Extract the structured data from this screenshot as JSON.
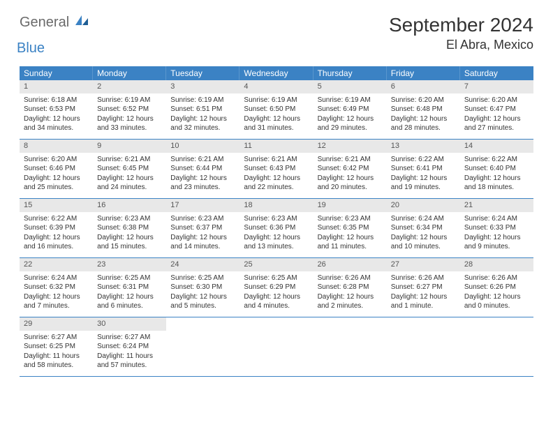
{
  "brand": {
    "part1": "General",
    "part2": "Blue"
  },
  "title": "September 2024",
  "location": "El Abra, Mexico",
  "colors": {
    "header_bg": "#3b82c4",
    "header_text": "#ffffff",
    "daynum_bg": "#e8e8e8",
    "daynum_text": "#555555",
    "body_text": "#333333",
    "row_border": "#3b82c4",
    "brand_gray": "#6a6a6a",
    "brand_blue": "#3b82c4"
  },
  "day_headers": [
    "Sunday",
    "Monday",
    "Tuesday",
    "Wednesday",
    "Thursday",
    "Friday",
    "Saturday"
  ],
  "weeks": [
    [
      {
        "n": "1",
        "sunrise": "Sunrise: 6:18 AM",
        "sunset": "Sunset: 6:53 PM",
        "daylight": "Daylight: 12 hours and 34 minutes."
      },
      {
        "n": "2",
        "sunrise": "Sunrise: 6:19 AM",
        "sunset": "Sunset: 6:52 PM",
        "daylight": "Daylight: 12 hours and 33 minutes."
      },
      {
        "n": "3",
        "sunrise": "Sunrise: 6:19 AM",
        "sunset": "Sunset: 6:51 PM",
        "daylight": "Daylight: 12 hours and 32 minutes."
      },
      {
        "n": "4",
        "sunrise": "Sunrise: 6:19 AM",
        "sunset": "Sunset: 6:50 PM",
        "daylight": "Daylight: 12 hours and 31 minutes."
      },
      {
        "n": "5",
        "sunrise": "Sunrise: 6:19 AM",
        "sunset": "Sunset: 6:49 PM",
        "daylight": "Daylight: 12 hours and 29 minutes."
      },
      {
        "n": "6",
        "sunrise": "Sunrise: 6:20 AM",
        "sunset": "Sunset: 6:48 PM",
        "daylight": "Daylight: 12 hours and 28 minutes."
      },
      {
        "n": "7",
        "sunrise": "Sunrise: 6:20 AM",
        "sunset": "Sunset: 6:47 PM",
        "daylight": "Daylight: 12 hours and 27 minutes."
      }
    ],
    [
      {
        "n": "8",
        "sunrise": "Sunrise: 6:20 AM",
        "sunset": "Sunset: 6:46 PM",
        "daylight": "Daylight: 12 hours and 25 minutes."
      },
      {
        "n": "9",
        "sunrise": "Sunrise: 6:21 AM",
        "sunset": "Sunset: 6:45 PM",
        "daylight": "Daylight: 12 hours and 24 minutes."
      },
      {
        "n": "10",
        "sunrise": "Sunrise: 6:21 AM",
        "sunset": "Sunset: 6:44 PM",
        "daylight": "Daylight: 12 hours and 23 minutes."
      },
      {
        "n": "11",
        "sunrise": "Sunrise: 6:21 AM",
        "sunset": "Sunset: 6:43 PM",
        "daylight": "Daylight: 12 hours and 22 minutes."
      },
      {
        "n": "12",
        "sunrise": "Sunrise: 6:21 AM",
        "sunset": "Sunset: 6:42 PM",
        "daylight": "Daylight: 12 hours and 20 minutes."
      },
      {
        "n": "13",
        "sunrise": "Sunrise: 6:22 AM",
        "sunset": "Sunset: 6:41 PM",
        "daylight": "Daylight: 12 hours and 19 minutes."
      },
      {
        "n": "14",
        "sunrise": "Sunrise: 6:22 AM",
        "sunset": "Sunset: 6:40 PM",
        "daylight": "Daylight: 12 hours and 18 minutes."
      }
    ],
    [
      {
        "n": "15",
        "sunrise": "Sunrise: 6:22 AM",
        "sunset": "Sunset: 6:39 PM",
        "daylight": "Daylight: 12 hours and 16 minutes."
      },
      {
        "n": "16",
        "sunrise": "Sunrise: 6:23 AM",
        "sunset": "Sunset: 6:38 PM",
        "daylight": "Daylight: 12 hours and 15 minutes."
      },
      {
        "n": "17",
        "sunrise": "Sunrise: 6:23 AM",
        "sunset": "Sunset: 6:37 PM",
        "daylight": "Daylight: 12 hours and 14 minutes."
      },
      {
        "n": "18",
        "sunrise": "Sunrise: 6:23 AM",
        "sunset": "Sunset: 6:36 PM",
        "daylight": "Daylight: 12 hours and 13 minutes."
      },
      {
        "n": "19",
        "sunrise": "Sunrise: 6:23 AM",
        "sunset": "Sunset: 6:35 PM",
        "daylight": "Daylight: 12 hours and 11 minutes."
      },
      {
        "n": "20",
        "sunrise": "Sunrise: 6:24 AM",
        "sunset": "Sunset: 6:34 PM",
        "daylight": "Daylight: 12 hours and 10 minutes."
      },
      {
        "n": "21",
        "sunrise": "Sunrise: 6:24 AM",
        "sunset": "Sunset: 6:33 PM",
        "daylight": "Daylight: 12 hours and 9 minutes."
      }
    ],
    [
      {
        "n": "22",
        "sunrise": "Sunrise: 6:24 AM",
        "sunset": "Sunset: 6:32 PM",
        "daylight": "Daylight: 12 hours and 7 minutes."
      },
      {
        "n": "23",
        "sunrise": "Sunrise: 6:25 AM",
        "sunset": "Sunset: 6:31 PM",
        "daylight": "Daylight: 12 hours and 6 minutes."
      },
      {
        "n": "24",
        "sunrise": "Sunrise: 6:25 AM",
        "sunset": "Sunset: 6:30 PM",
        "daylight": "Daylight: 12 hours and 5 minutes."
      },
      {
        "n": "25",
        "sunrise": "Sunrise: 6:25 AM",
        "sunset": "Sunset: 6:29 PM",
        "daylight": "Daylight: 12 hours and 4 minutes."
      },
      {
        "n": "26",
        "sunrise": "Sunrise: 6:26 AM",
        "sunset": "Sunset: 6:28 PM",
        "daylight": "Daylight: 12 hours and 2 minutes."
      },
      {
        "n": "27",
        "sunrise": "Sunrise: 6:26 AM",
        "sunset": "Sunset: 6:27 PM",
        "daylight": "Daylight: 12 hours and 1 minute."
      },
      {
        "n": "28",
        "sunrise": "Sunrise: 6:26 AM",
        "sunset": "Sunset: 6:26 PM",
        "daylight": "Daylight: 12 hours and 0 minutes."
      }
    ],
    [
      {
        "n": "29",
        "sunrise": "Sunrise: 6:27 AM",
        "sunset": "Sunset: 6:25 PM",
        "daylight": "Daylight: 11 hours and 58 minutes."
      },
      {
        "n": "30",
        "sunrise": "Sunrise: 6:27 AM",
        "sunset": "Sunset: 6:24 PM",
        "daylight": "Daylight: 11 hours and 57 minutes."
      },
      null,
      null,
      null,
      null,
      null
    ]
  ]
}
